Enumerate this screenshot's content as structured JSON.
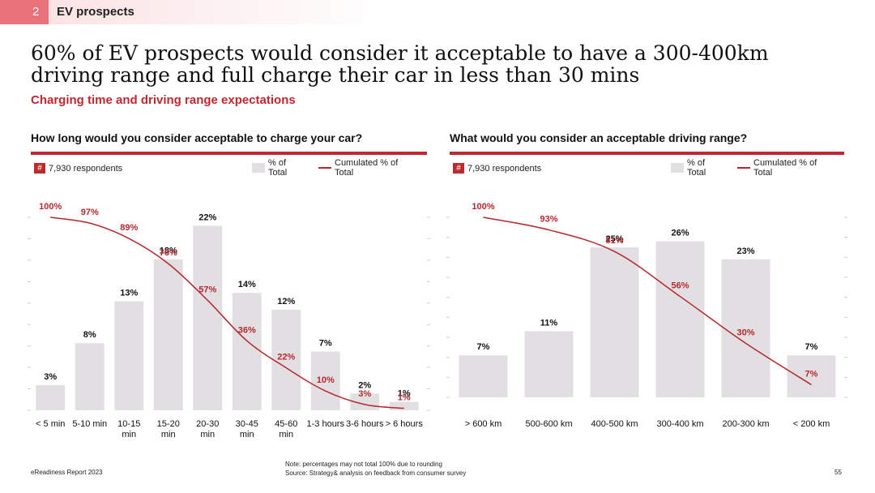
{
  "header": {
    "number": "2",
    "section": "EV prospects"
  },
  "title": "60% of EV prospects would consider it acceptable to have a 300-400km driving range and full charge their car in less than 30 mins",
  "subtitle": "Charging time and driving range expectations",
  "chart_data": [
    {
      "type": "bar",
      "title": "How long would you consider acceptable to charge your car?",
      "badge": "#",
      "respondents": "7,930 respondents",
      "categories": [
        "< 5 min",
        "5-10 min",
        "10-15 min",
        "15-20 min",
        "20-30 min",
        "30-45 min",
        "45-60 min",
        "1-3 hours",
        "3-6 hours",
        "> 6 hours"
      ],
      "series": [
        {
          "name": "% of Total",
          "type": "bar",
          "color": "#e2dfe2",
          "values": [
            3,
            8,
            13,
            18,
            22,
            14,
            12,
            7,
            2,
            1
          ],
          "value_labels": [
            "3%",
            "8%",
            "13%",
            "18%",
            "22%",
            "14%",
            "12%",
            "7%",
            "2%",
            "1%"
          ]
        },
        {
          "name": "Cumulated % of Total",
          "type": "line",
          "axis": "y2",
          "color": "#b5282e",
          "values": [
            100,
            97,
            89,
            76,
            57,
            36,
            22,
            10,
            3,
            1
          ],
          "value_labels": [
            "100%",
            "97%",
            "89%",
            "76%",
            "57%",
            "36%",
            "22%",
            "10%",
            "3%",
            "1%"
          ]
        }
      ],
      "ylim": [
        0,
        23
      ],
      "y2lim": [
        0,
        100
      ]
    },
    {
      "type": "bar",
      "title": "What would you consider an acceptable driving range?",
      "badge": "#",
      "respondents": "7,930 respondents",
      "categories": [
        "> 600 km",
        "500-600 km",
        "400-500 km",
        "300-400 km",
        "200-300 km",
        "< 200 km"
      ],
      "series": [
        {
          "name": "% of Total",
          "type": "bar",
          "color": "#e2dfe2",
          "values": [
            7,
            11,
            25,
            26,
            23,
            7
          ],
          "value_labels": [
            "7%",
            "11%",
            "25%",
            "26%",
            "23%",
            "7%"
          ]
        },
        {
          "name": "Cumulated % of Total",
          "type": "line",
          "axis": "y2",
          "color": "#b5282e",
          "values": [
            100,
            93,
            81,
            56,
            30,
            7
          ],
          "value_labels": [
            "100%",
            "93%",
            "81%",
            "56%",
            "30%",
            "7%"
          ]
        }
      ],
      "ylim": [
        0,
        30
      ],
      "y2lim": [
        0,
        100
      ]
    }
  ],
  "footer": {
    "report": "eReadiness Report 2023",
    "note": "Note: percentages may not total 100% due to rounding",
    "source": "Source: Strategy& analysis on feedback from consumer survey",
    "page": "55"
  }
}
